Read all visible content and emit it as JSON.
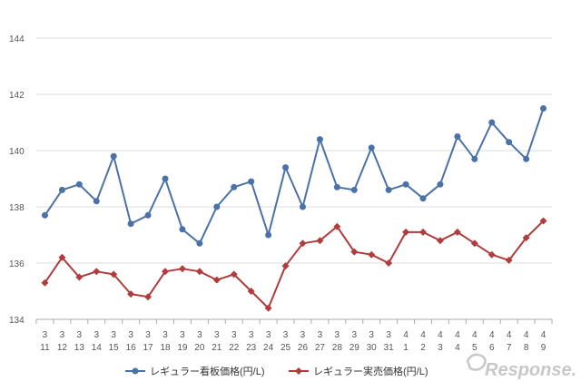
{
  "chart_data": {
    "type": "line",
    "title": "",
    "xlabel": "",
    "ylabel": "",
    "ylim": [
      134,
      144
    ],
    "yticks": [
      134,
      136,
      138,
      140,
      142,
      144
    ],
    "grid": true,
    "legend_position": "bottom",
    "categories": [
      {
        "month": "3",
        "day": "11"
      },
      {
        "month": "3",
        "day": "12"
      },
      {
        "month": "3",
        "day": "13"
      },
      {
        "month": "3",
        "day": "14"
      },
      {
        "month": "3",
        "day": "15"
      },
      {
        "month": "3",
        "day": "16"
      },
      {
        "month": "3",
        "day": "17"
      },
      {
        "month": "3",
        "day": "18"
      },
      {
        "month": "3",
        "day": "19"
      },
      {
        "month": "3",
        "day": "20"
      },
      {
        "month": "3",
        "day": "21"
      },
      {
        "month": "3",
        "day": "22"
      },
      {
        "month": "3",
        "day": "23"
      },
      {
        "month": "3",
        "day": "24"
      },
      {
        "month": "3",
        "day": "25"
      },
      {
        "month": "3",
        "day": "26"
      },
      {
        "month": "3",
        "day": "27"
      },
      {
        "month": "3",
        "day": "28"
      },
      {
        "month": "3",
        "day": "29"
      },
      {
        "month": "3",
        "day": "30"
      },
      {
        "month": "3",
        "day": "31"
      },
      {
        "month": "4",
        "day": "1"
      },
      {
        "month": "4",
        "day": "2"
      },
      {
        "month": "4",
        "day": "3"
      },
      {
        "month": "4",
        "day": "4"
      },
      {
        "month": "4",
        "day": "5"
      },
      {
        "month": "4",
        "day": "6"
      },
      {
        "month": "4",
        "day": "7"
      },
      {
        "month": "4",
        "day": "8"
      },
      {
        "month": "4",
        "day": "9"
      }
    ],
    "series": [
      {
        "name": "レギュラー看板価格(円/L)",
        "color": "#4a72a8",
        "marker": "circle",
        "values": [
          137.7,
          138.6,
          138.8,
          138.2,
          139.8,
          137.4,
          137.7,
          139.0,
          137.2,
          136.7,
          138.0,
          138.7,
          138.9,
          137.0,
          139.4,
          138.0,
          140.4,
          138.7,
          138.6,
          140.1,
          138.6,
          138.8,
          138.3,
          138.8,
          140.5,
          139.7,
          141.0,
          140.3,
          139.7,
          141.5
        ]
      },
      {
        "name": "レギュラー実売価格(円/L)",
        "color": "#b03c3c",
        "marker": "diamond",
        "values": [
          135.3,
          136.2,
          135.5,
          135.7,
          135.6,
          134.9,
          134.8,
          135.7,
          135.8,
          135.7,
          135.4,
          135.6,
          135.0,
          134.4,
          135.9,
          136.7,
          136.8,
          137.3,
          136.4,
          136.3,
          136.0,
          137.1,
          137.1,
          136.8,
          137.1,
          136.7,
          136.3,
          136.1,
          136.9,
          137.5
        ]
      }
    ]
  },
  "watermark": {
    "text": "Response."
  }
}
